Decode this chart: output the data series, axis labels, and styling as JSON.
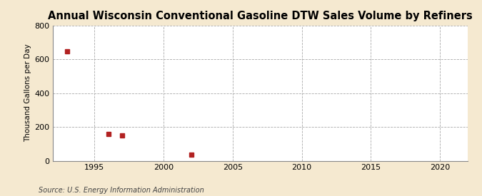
{
  "title": "Annual Wisconsin Conventional Gasoline DTW Sales Volume by Refiners",
  "ylabel": "Thousand Gallons per Day",
  "source": "Source: U.S. Energy Information Administration",
  "background_color": "#f5e9d0",
  "plot_background_color": "#ffffff",
  "data_points": [
    {
      "year": 1993,
      "value": 648
    },
    {
      "year": 1996,
      "value": 157
    },
    {
      "year": 1997,
      "value": 148
    },
    {
      "year": 2002,
      "value": 35
    }
  ],
  "marker_color": "#b22222",
  "marker_size": 4,
  "xlim": [
    1992,
    2022
  ],
  "ylim": [
    0,
    800
  ],
  "xticks": [
    1995,
    2000,
    2005,
    2010,
    2015,
    2020
  ],
  "yticks": [
    0,
    200,
    400,
    600,
    800
  ],
  "grid_color": "#aaaaaa",
  "grid_linestyle": "--",
  "grid_linewidth": 0.6,
  "title_fontsize": 10.5,
  "ylabel_fontsize": 7.5,
  "tick_fontsize": 8,
  "source_fontsize": 7
}
